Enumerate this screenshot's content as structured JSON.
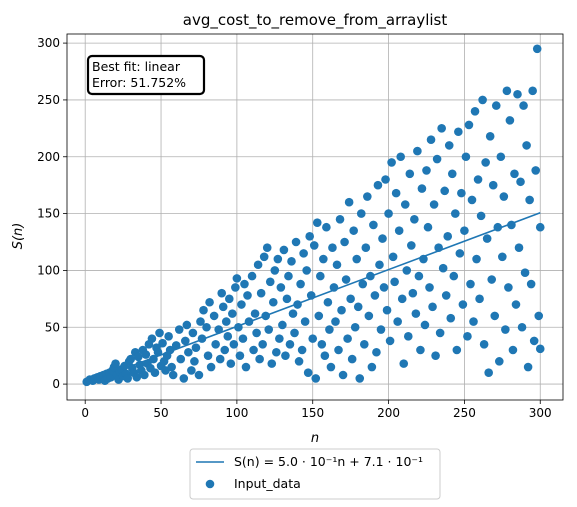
{
  "chart_data": {
    "type": "scatter",
    "title": "avg_cost_to_remove_from_arraylist",
    "xlabel": "n",
    "ylabel": "S(n)",
    "xlim": [
      -12,
      315
    ],
    "ylim": [
      -14,
      308
    ],
    "xticks": [
      0,
      50,
      100,
      150,
      200,
      250,
      300
    ],
    "yticks": [
      0,
      50,
      100,
      150,
      200,
      250,
      300
    ],
    "grid": true,
    "legend_position": "below-center",
    "annotation": {
      "line1": "Best fit: linear",
      "line2": "Error: 51.752%"
    },
    "fit": {
      "name": "S(n) = 5.0 · 10⁻¹n + 7.1 · 10⁻¹",
      "slope": 0.5,
      "intercept": 0.71,
      "x_range": [
        1,
        300
      ],
      "color": "#1f77b4"
    },
    "scatter": {
      "name": "Input_data",
      "color": "#1f77b4",
      "points": [
        [
          1,
          2
        ],
        [
          3,
          4
        ],
        [
          5,
          3
        ],
        [
          6,
          5
        ],
        [
          8,
          6
        ],
        [
          9,
          4
        ],
        [
          10,
          7
        ],
        [
          12,
          8
        ],
        [
          13,
          3
        ],
        [
          14,
          9
        ],
        [
          15,
          5
        ],
        [
          16,
          10
        ],
        [
          17,
          6
        ],
        [
          18,
          12
        ],
        [
          19,
          15
        ],
        [
          20,
          18
        ],
        [
          21,
          8
        ],
        [
          22,
          4
        ],
        [
          23,
          11
        ],
        [
          24,
          13
        ],
        [
          25,
          7
        ],
        [
          26,
          16
        ],
        [
          27,
          9
        ],
        [
          28,
          5
        ],
        [
          29,
          20
        ],
        [
          30,
          22
        ],
        [
          31,
          14
        ],
        [
          32,
          10
        ],
        [
          33,
          28
        ],
        [
          34,
          6
        ],
        [
          35,
          24
        ],
        [
          36,
          17
        ],
        [
          37,
          12
        ],
        [
          38,
          30
        ],
        [
          39,
          8
        ],
        [
          40,
          26
        ],
        [
          41,
          18
        ],
        [
          42,
          35
        ],
        [
          43,
          14
        ],
        [
          44,
          40
        ],
        [
          45,
          22
        ],
        [
          46,
          10
        ],
        [
          47,
          32
        ],
        [
          48,
          28
        ],
        [
          49,
          45
        ],
        [
          50,
          16
        ],
        [
          51,
          36
        ],
        [
          52,
          20
        ],
        [
          53,
          12
        ],
        [
          54,
          25
        ],
        [
          55,
          42
        ],
        [
          56,
          30
        ],
        [
          57,
          15
        ],
        [
          58,
          8
        ],
        [
          60,
          34
        ],
        [
          62,
          48
        ],
        [
          63,
          22
        ],
        [
          65,
          5
        ],
        [
          66,
          38
        ],
        [
          67,
          52
        ],
        [
          68,
          28
        ],
        [
          70,
          12
        ],
        [
          71,
          45
        ],
        [
          72,
          20
        ],
        [
          73,
          32
        ],
        [
          75,
          8
        ],
        [
          76,
          55
        ],
        [
          77,
          40
        ],
        [
          78,
          65
        ],
        [
          80,
          50
        ],
        [
          81,
          25
        ],
        [
          82,
          72
        ],
        [
          83,
          15
        ],
        [
          85,
          60
        ],
        [
          86,
          35
        ],
        [
          88,
          48
        ],
        [
          89,
          22
        ],
        [
          90,
          80
        ],
        [
          91,
          68
        ],
        [
          92,
          30
        ],
        [
          93,
          55
        ],
        [
          94,
          42
        ],
        [
          95,
          75
        ],
        [
          96,
          18
        ],
        [
          97,
          62
        ],
        [
          98,
          35
        ],
        [
          99,
          85
        ],
        [
          100,
          93
        ],
        [
          101,
          50
        ],
        [
          102,
          25
        ],
        [
          103,
          70
        ],
        [
          104,
          40
        ],
        [
          105,
          88
        ],
        [
          106,
          15
        ],
        [
          107,
          78
        ],
        [
          108,
          55
        ],
        [
          110,
          95
        ],
        [
          111,
          30
        ],
        [
          112,
          62
        ],
        [
          113,
          45
        ],
        [
          114,
          105
        ],
        [
          115,
          22
        ],
        [
          116,
          80
        ],
        [
          117,
          35
        ],
        [
          118,
          112
        ],
        [
          119,
          60
        ],
        [
          120,
          120
        ],
        [
          121,
          48
        ],
        [
          122,
          90
        ],
        [
          123,
          18
        ],
        [
          124,
          72
        ],
        [
          125,
          100
        ],
        [
          126,
          28
        ],
        [
          127,
          110
        ],
        [
          128,
          40
        ],
        [
          129,
          85
        ],
        [
          130,
          52
        ],
        [
          131,
          118
        ],
        [
          132,
          25
        ],
        [
          133,
          75
        ],
        [
          134,
          95
        ],
        [
          135,
          35
        ],
        [
          136,
          108
        ],
        [
          137,
          62
        ],
        [
          138,
          45
        ],
        [
          139,
          125
        ],
        [
          140,
          70
        ],
        [
          141,
          20
        ],
        [
          142,
          88
        ],
        [
          143,
          30
        ],
        [
          144,
          115
        ],
        [
          145,
          55
        ],
        [
          146,
          100
        ],
        [
          147,
          10
        ],
        [
          148,
          130
        ],
        [
          149,
          78
        ],
        [
          150,
          40
        ],
        [
          151,
          122
        ],
        [
          152,
          5
        ],
        [
          153,
          142
        ],
        [
          154,
          60
        ],
        [
          155,
          95
        ],
        [
          156,
          35
        ],
        [
          157,
          110
        ],
        [
          158,
          25
        ],
        [
          159,
          138
        ],
        [
          160,
          72
        ],
        [
          161,
          48
        ],
        [
          162,
          15
        ],
        [
          163,
          120
        ],
        [
          164,
          85
        ],
        [
          165,
          55
        ],
        [
          166,
          105
        ],
        [
          167,
          30
        ],
        [
          168,
          145
        ],
        [
          169,
          65
        ],
        [
          170,
          8
        ],
        [
          171,
          125
        ],
        [
          172,
          92
        ],
        [
          173,
          40
        ],
        [
          174,
          160
        ],
        [
          175,
          75
        ],
        [
          176,
          22
        ],
        [
          177,
          135
        ],
        [
          178,
          50
        ],
        [
          179,
          110
        ],
        [
          180,
          68
        ],
        [
          181,
          5
        ],
        [
          182,
          150
        ],
        [
          183,
          88
        ],
        [
          184,
          35
        ],
        [
          185,
          120
        ],
        [
          186,
          165
        ],
        [
          187,
          60
        ],
        [
          188,
          95
        ],
        [
          189,
          15
        ],
        [
          190,
          140
        ],
        [
          191,
          78
        ],
        [
          192,
          28
        ],
        [
          193,
          175
        ],
        [
          194,
          105
        ],
        [
          195,
          48
        ],
        [
          196,
          128
        ],
        [
          197,
          85
        ],
        [
          198,
          180
        ],
        [
          199,
          65
        ],
        [
          200,
          150
        ],
        [
          201,
          38
        ],
        [
          202,
          195
        ],
        [
          203,
          112
        ],
        [
          204,
          90
        ],
        [
          205,
          168
        ],
        [
          206,
          55
        ],
        [
          207,
          135
        ],
        [
          208,
          200
        ],
        [
          209,
          75
        ],
        [
          210,
          18
        ],
        [
          211,
          158
        ],
        [
          212,
          100
        ],
        [
          213,
          42
        ],
        [
          214,
          185
        ],
        [
          215,
          122
        ],
        [
          216,
          80
        ],
        [
          217,
          145
        ],
        [
          218,
          62
        ],
        [
          219,
          205
        ],
        [
          220,
          95
        ],
        [
          221,
          30
        ],
        [
          222,
          172
        ],
        [
          223,
          110
        ],
        [
          224,
          52
        ],
        [
          225,
          188
        ],
        [
          226,
          138
        ],
        [
          227,
          85
        ],
        [
          228,
          215
        ],
        [
          229,
          68
        ],
        [
          230,
          158
        ],
        [
          231,
          25
        ],
        [
          232,
          198
        ],
        [
          233,
          120
        ],
        [
          234,
          45
        ],
        [
          235,
          225
        ],
        [
          236,
          102
        ],
        [
          237,
          170
        ],
        [
          238,
          78
        ],
        [
          239,
          130
        ],
        [
          240,
          210
        ],
        [
          241,
          58
        ],
        [
          242,
          185
        ],
        [
          243,
          95
        ],
        [
          244,
          150
        ],
        [
          245,
          30
        ],
        [
          246,
          222
        ],
        [
          247,
          115
        ],
        [
          248,
          168
        ],
        [
          249,
          70
        ],
        [
          250,
          135
        ],
        [
          251,
          200
        ],
        [
          252,
          42
        ],
        [
          253,
          228
        ],
        [
          254,
          88
        ],
        [
          255,
          162
        ],
        [
          256,
          55
        ],
        [
          257,
          240
        ],
        [
          258,
          110
        ],
        [
          259,
          180
        ],
        [
          260,
          75
        ],
        [
          261,
          148
        ],
        [
          262,
          250
        ],
        [
          263,
          35
        ],
        [
          264,
          195
        ],
        [
          265,
          128
        ],
        [
          266,
          10
        ],
        [
          267,
          218
        ],
        [
          268,
          92
        ],
        [
          269,
          175
        ],
        [
          270,
          60
        ],
        [
          271,
          245
        ],
        [
          272,
          138
        ],
        [
          273,
          20
        ],
        [
          274,
          200
        ],
        [
          275,
          112
        ],
        [
          276,
          165
        ],
        [
          277,
          48
        ],
        [
          278,
          258
        ],
        [
          279,
          85
        ],
        [
          280,
          232
        ],
        [
          281,
          140
        ],
        [
          282,
          30
        ],
        [
          283,
          185
        ],
        [
          284,
          70
        ],
        [
          285,
          255
        ],
        [
          286,
          120
        ],
        [
          287,
          178
        ],
        [
          288,
          50
        ],
        [
          289,
          245
        ],
        [
          290,
          98
        ],
        [
          291,
          210
        ],
        [
          292,
          15
        ],
        [
          293,
          162
        ],
        [
          294,
          88
        ],
        [
          295,
          258
        ],
        [
          296,
          38
        ],
        [
          297,
          188
        ],
        [
          298,
          295
        ],
        [
          299,
          60
        ],
        [
          300,
          138
        ],
        [
          300,
          31
        ]
      ]
    }
  }
}
